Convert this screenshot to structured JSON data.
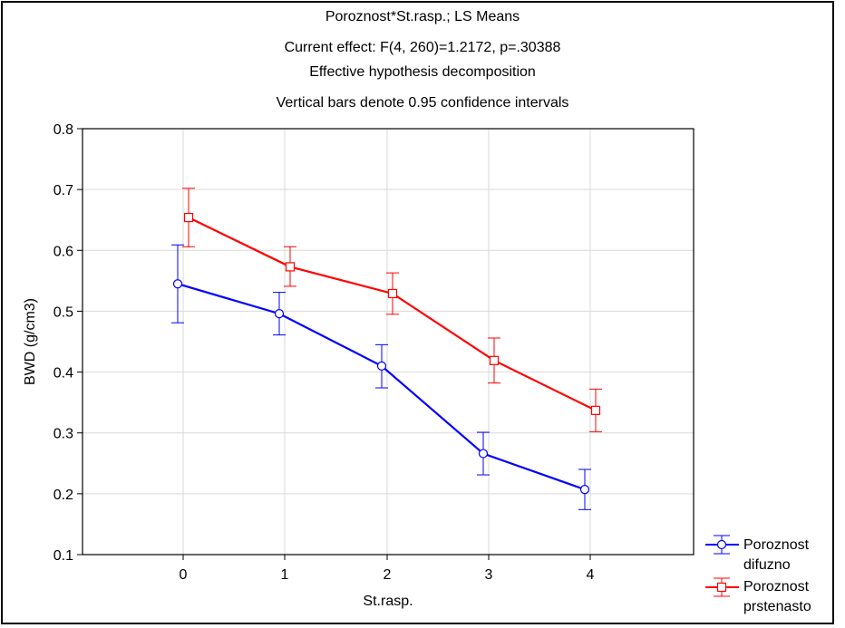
{
  "chart_data": {
    "type": "line",
    "title_lines": [
      "Poroznost*St.rasp.; LS Means",
      "Current effect: F(4, 260)=1.2172, p=.30388",
      "Effective hypothesis decomposition",
      "Vertical bars denote 0.95 confidence intervals"
    ],
    "xlabel": "St.rasp.",
    "ylabel": "BWD (g/cm3)",
    "categories": [
      "0",
      "1",
      "2",
      "3",
      "4"
    ],
    "ylim": [
      0.1,
      0.8
    ],
    "yticks": [
      "0.1",
      "0.2",
      "0.3",
      "0.4",
      "0.5",
      "0.6",
      "0.7",
      "0.8"
    ],
    "grid": true,
    "legend_position": "bottom-right",
    "series": [
      {
        "name_lines": [
          "Poroznost",
          "difuzno"
        ],
        "color": "#0000ff",
        "marker": "circle",
        "values": [
          0.545,
          0.496,
          0.41,
          0.266,
          0.207
        ],
        "ci_low": [
          0.481,
          0.461,
          0.374,
          0.231,
          0.174
        ],
        "ci_high": [
          0.609,
          0.531,
          0.445,
          0.301,
          0.24
        ]
      },
      {
        "name_lines": [
          "Poroznost",
          "prstenasto"
        ],
        "color": "#ff0000",
        "marker": "square",
        "values": [
          0.654,
          0.573,
          0.529,
          0.419,
          0.337
        ],
        "ci_low": [
          0.606,
          0.541,
          0.495,
          0.382,
          0.302
        ],
        "ci_high": [
          0.702,
          0.606,
          0.563,
          0.456,
          0.372
        ]
      }
    ]
  }
}
